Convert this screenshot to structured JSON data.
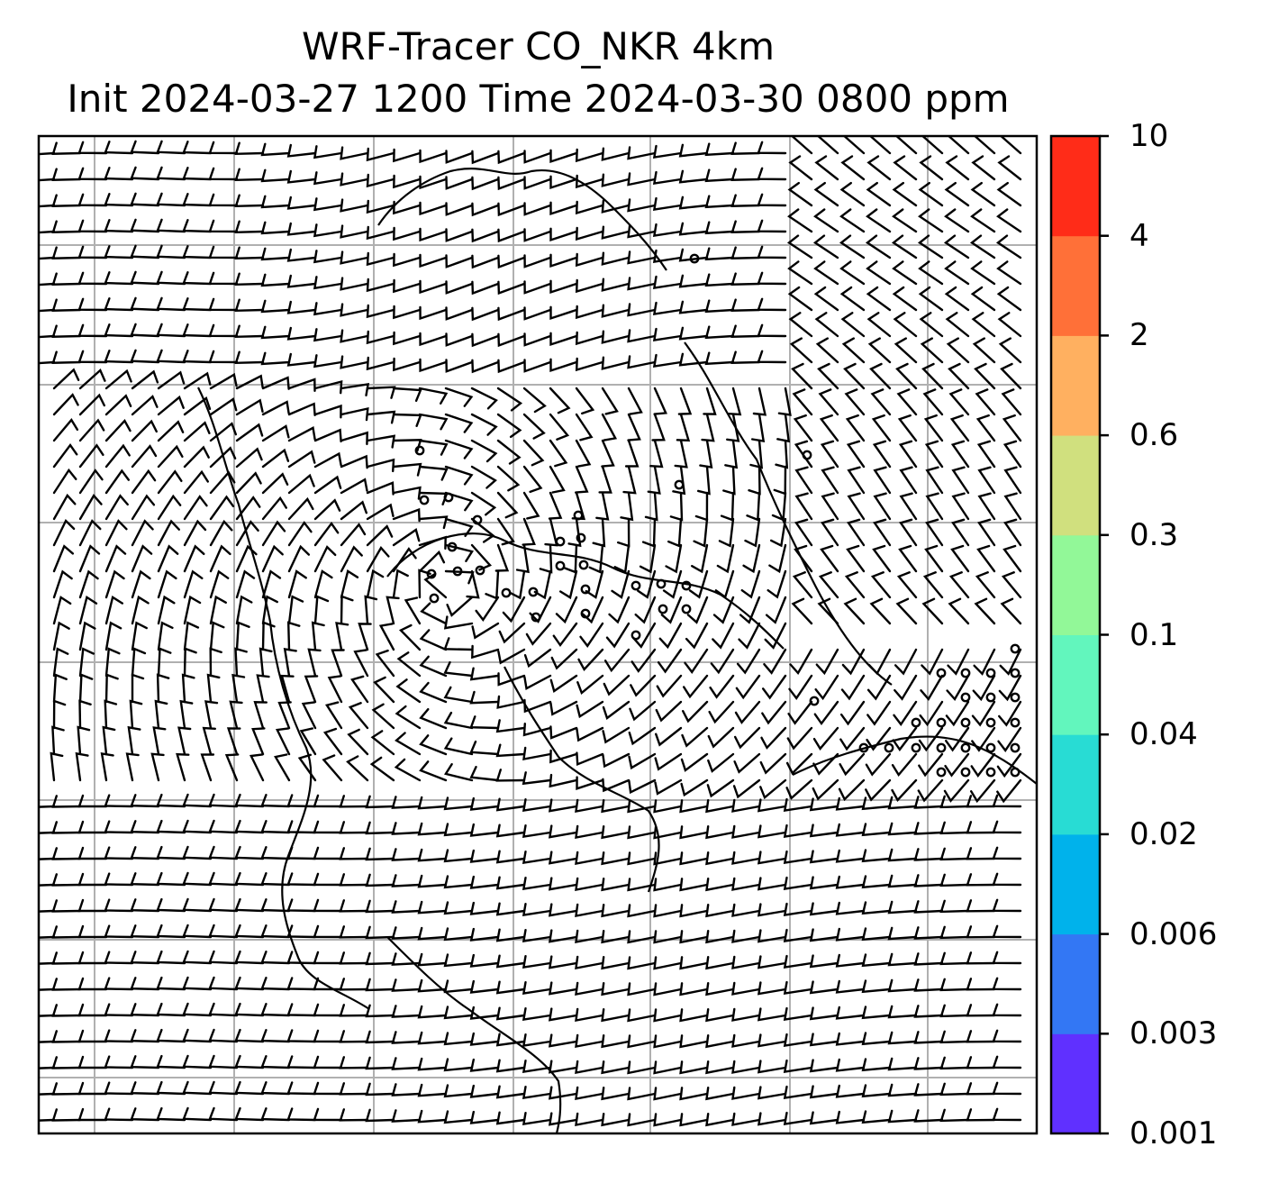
{
  "title": {
    "line1": "WRF-Tracer CO_NKR 4km",
    "line2": "Init 2024-03-27 1200 Time 2024-03-30 0800 ppm"
  },
  "colorbar": {
    "levels": [
      "0.001",
      "0.003",
      "0.006",
      "0.02",
      "0.04",
      "0.1",
      "0.3",
      "0.6",
      "2",
      "4",
      "10"
    ],
    "colors": [
      "#6030ff",
      "#3377f4",
      "#00b2eb",
      "#28dcd4",
      "#62f6bd",
      "#92f898",
      "#d0e07e",
      "#ffb060",
      "#ff7038",
      "#ff2c18"
    ]
  },
  "map": {
    "gridlines": true,
    "gridline_color": "#b0b0b0",
    "wind_barbs": true,
    "calm_markers": true
  }
}
